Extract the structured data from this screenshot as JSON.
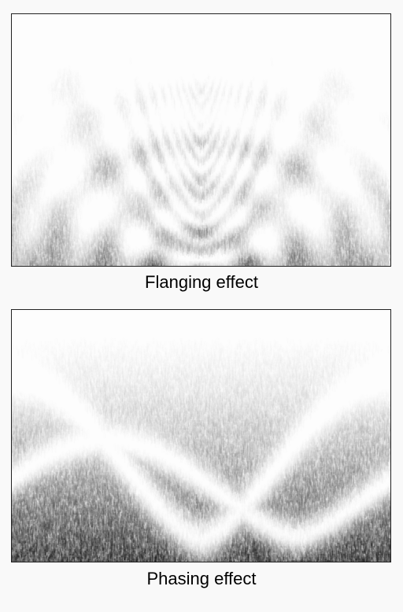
{
  "figures": [
    {
      "id": "flanging",
      "caption": "Flanging effect",
      "pattern": "flanging",
      "notch_spacing": "harmonic",
      "visual_style": "grayscale spectrogram"
    },
    {
      "id": "phasing",
      "caption": "Phasing effect",
      "pattern": "phasing",
      "notch_spacing": "few broad notches",
      "visual_style": "grayscale spectrogram"
    }
  ],
  "colors": {
    "background": "#f9f9f9",
    "ink": "#000000",
    "frame": "#222222"
  }
}
